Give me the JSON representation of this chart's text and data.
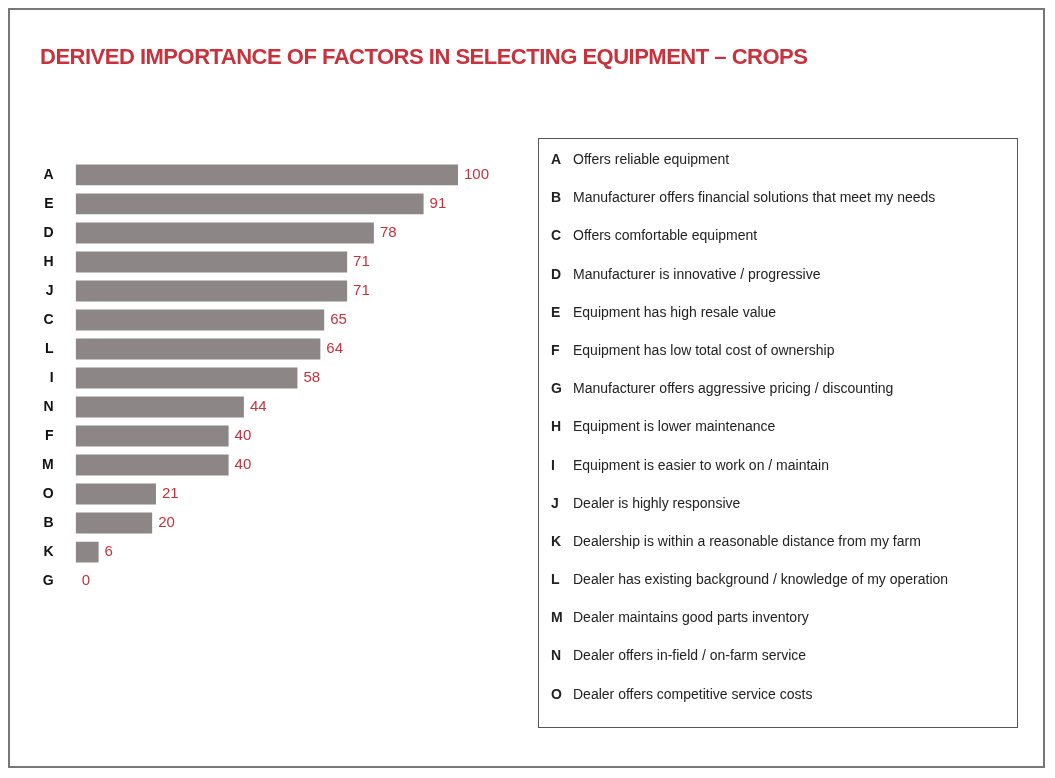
{
  "chart_data": {
    "type": "bar",
    "orientation": "horizontal",
    "title": "DERIVED IMPORTANCE OF FACTORS IN SELECTING EQUIPMENT – CROPS",
    "categories": [
      "A",
      "E",
      "D",
      "H",
      "J",
      "C",
      "L",
      "I",
      "N",
      "F",
      "M",
      "O",
      "B",
      "K",
      "G"
    ],
    "values": [
      100,
      91,
      78,
      71,
      71,
      65,
      64,
      58,
      44,
      40,
      40,
      21,
      20,
      6,
      0
    ],
    "color": "#8c8686",
    "data_labels": true,
    "grid": false,
    "legend": false,
    "annotations": [
      "A Offers reliable equipment",
      "B Manufacturer offers financial solutions that meet my needs",
      "C Offers comfortable equipment",
      "D Manufacturer is innovative / progressive",
      "E Equipment has high resale value",
      "F Equipment has low total cost of ownership",
      "G Manufacturer offers aggressive pricing / discounting",
      "H Equipment is lower maintenance",
      "I Equipment is easier to work on / maintain",
      "J Dealer is highly responsive",
      "K Dealership is within a reasonable distance from my farm",
      "L Dealer has existing background / knowledge of my operation",
      "M Dealer maintains good parts inventory",
      "N Dealer offers in-field / on-farm service",
      "O Dealer offers competitive service costs"
    ]
  }
}
